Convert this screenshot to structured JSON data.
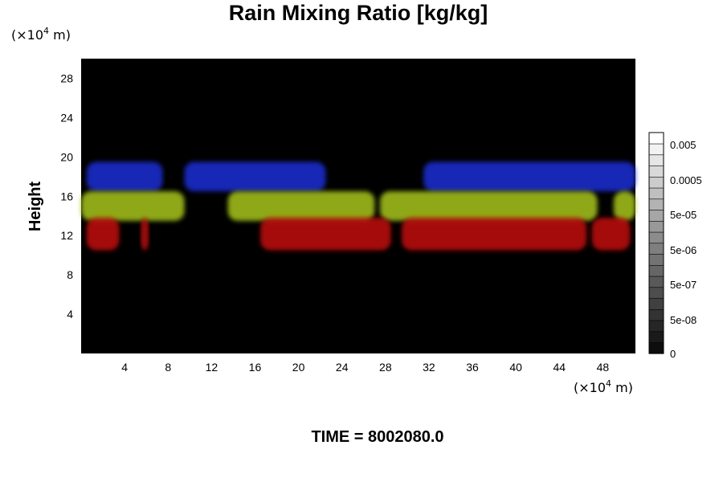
{
  "chart_data": {
    "type": "heatmap",
    "title": "Rain Mixing Ratio [kg/kg]",
    "ylabel": "Height",
    "x_unit_prefix": "(×10",
    "x_unit_exp": "4",
    "x_unit_suffix": " m)",
    "y_unit_prefix": "(×10",
    "y_unit_exp": "4",
    "y_unit_suffix": " m)",
    "xlim": [
      0,
      51
    ],
    "ylim": [
      0,
      30
    ],
    "x_ticks": [
      "4",
      "8",
      "12",
      "16",
      "20",
      "24",
      "28",
      "32",
      "36",
      "40",
      "44",
      "48"
    ],
    "y_ticks": [
      "4",
      "8",
      "12",
      "16",
      "20",
      "24",
      "28"
    ],
    "colorbar": {
      "levels": 20,
      "tick_labels": [
        "0.005",
        "0.0005",
        "5e-05",
        "5e-06",
        "5e-07",
        "5e-08",
        "0"
      ],
      "colors": [
        "#000000",
        "#ffffff"
      ]
    },
    "layers": [
      {
        "color": "#1f2fd6",
        "y_range": [
          16.5,
          19.5
        ],
        "segments": [
          [
            0.5,
            7.5
          ],
          [
            9.5,
            22.5
          ],
          [
            31.5,
            51
          ]
        ]
      },
      {
        "color": "#a8c61e",
        "y_range": [
          13.5,
          16.5
        ],
        "segments": [
          [
            0,
            9.5
          ],
          [
            13.5,
            27
          ],
          [
            27.5,
            47.5
          ],
          [
            49,
            51
          ]
        ]
      },
      {
        "color": "#c41010",
        "y_range": [
          10.5,
          13.8
        ],
        "segments": [
          [
            0.5,
            3.5
          ],
          [
            16.5,
            28.5
          ],
          [
            29.5,
            46.5
          ],
          [
            47,
            50.5
          ],
          [
            5.5,
            6.2
          ]
        ]
      }
    ]
  },
  "footer": {
    "time_label": "TIME = 8002080.0"
  }
}
